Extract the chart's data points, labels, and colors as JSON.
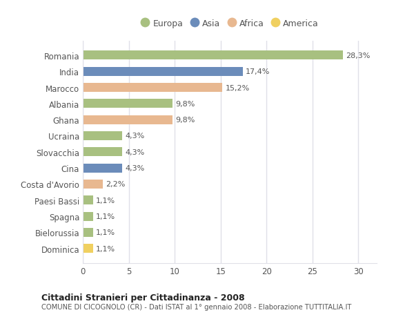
{
  "categories": [
    "Romania",
    "India",
    "Marocco",
    "Albania",
    "Ghana",
    "Ucraina",
    "Slovacchia",
    "Cina",
    "Costa d'Avorio",
    "Paesi Bassi",
    "Spagna",
    "Bielorussia",
    "Dominica"
  ],
  "values": [
    28.3,
    17.4,
    15.2,
    9.8,
    9.8,
    4.3,
    4.3,
    4.3,
    2.2,
    1.1,
    1.1,
    1.1,
    1.1
  ],
  "labels": [
    "28,3%",
    "17,4%",
    "15,2%",
    "9,8%",
    "9,8%",
    "4,3%",
    "4,3%",
    "4,3%",
    "2,2%",
    "1,1%",
    "1,1%",
    "1,1%",
    "1,1%"
  ],
  "colors": [
    "#a8c080",
    "#6b8cba",
    "#e8b890",
    "#a8c080",
    "#e8b890",
    "#a8c080",
    "#a8c080",
    "#6b8cba",
    "#e8b890",
    "#a8c080",
    "#a8c080",
    "#a8c080",
    "#f0d060"
  ],
  "legend_labels": [
    "Europa",
    "Asia",
    "Africa",
    "America"
  ],
  "legend_colors": [
    "#a8c080",
    "#6b8cba",
    "#e8b890",
    "#f0d060"
  ],
  "xlim": [
    0,
    32
  ],
  "xticks": [
    0,
    5,
    10,
    15,
    20,
    25,
    30
  ],
  "title": "Cittadini Stranieri per Cittadinanza - 2008",
  "subtitle": "COMUNE DI CICOGNOLO (CR) - Dati ISTAT al 1° gennaio 2008 - Elaborazione TUTTITALIA.IT",
  "bg_color": "#ffffff",
  "plot_bg_color": "#ffffff",
  "bar_height": 0.55,
  "grid_color": "#e0e0e8",
  "label_fontsize": 8.0,
  "tick_fontsize": 8.5,
  "text_color": "#555555"
}
